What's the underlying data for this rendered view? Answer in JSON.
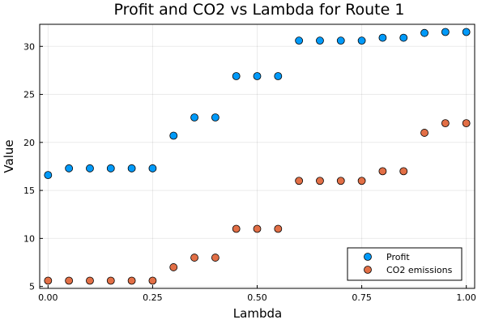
{
  "chart_data": {
    "type": "scatter",
    "title": "Profit and CO2 vs Lambda for Route 1",
    "xlabel": "Lambda",
    "ylabel": "Value",
    "xlim": [
      -0.02,
      1.02
    ],
    "ylim": [
      4.8,
      32.3
    ],
    "xticks": [
      0.0,
      0.25,
      0.5,
      0.75,
      1.0
    ],
    "xtick_labels": [
      "0.00",
      "0.25",
      "0.50",
      "0.75",
      "1.00"
    ],
    "yticks": [
      5,
      10,
      15,
      20,
      25,
      30
    ],
    "ytick_labels": [
      "5",
      "10",
      "15",
      "20",
      "25",
      "30"
    ],
    "grid": true,
    "legend_position": "bottom-right",
    "x": [
      0.0,
      0.05,
      0.1,
      0.15,
      0.2,
      0.25,
      0.3,
      0.35,
      0.4,
      0.45,
      0.5,
      0.55,
      0.6,
      0.65,
      0.7,
      0.75,
      0.8,
      0.85,
      0.9,
      0.95,
      1.0
    ],
    "series": [
      {
        "name": "Profit",
        "color": "#009af9",
        "values": [
          16.6,
          17.3,
          17.3,
          17.3,
          17.3,
          17.3,
          20.7,
          22.6,
          22.6,
          26.9,
          26.9,
          26.9,
          30.6,
          30.6,
          30.6,
          30.6,
          30.9,
          30.9,
          31.4,
          31.5,
          31.5
        ]
      },
      {
        "name": "CO2 emissions",
        "color": "#e26f46",
        "values": [
          5.6,
          5.6,
          5.6,
          5.6,
          5.6,
          5.6,
          7.0,
          8.0,
          8.0,
          11.0,
          11.0,
          11.0,
          16.0,
          16.0,
          16.0,
          16.0,
          17.0,
          17.0,
          21.0,
          22.0,
          22.0
        ]
      }
    ]
  }
}
